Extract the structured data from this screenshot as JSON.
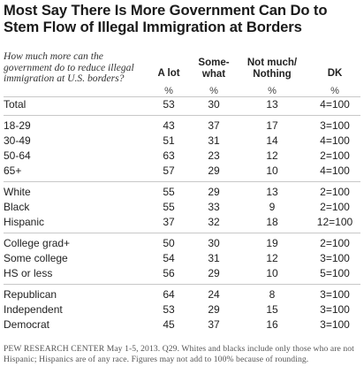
{
  "chart_data": {
    "type": "table",
    "title": "Most Say There Is More Government Can Do to Stem Flow of Illegal Immigration at Borders",
    "question": "How much more can the government do to reduce illegal immigration at U.S. borders?",
    "columns": [
      {
        "label": "A lot",
        "unit": "%"
      },
      {
        "label": "Some-what",
        "unit": "%"
      },
      {
        "label": "Not much/ Nothing",
        "unit": "%"
      },
      {
        "label": "DK",
        "unit": "%"
      }
    ],
    "groups": [
      {
        "rows": [
          {
            "label": "Total",
            "values": [
              "53",
              "30",
              "13",
              "4=100"
            ]
          }
        ]
      },
      {
        "rows": [
          {
            "label": "18-29",
            "values": [
              "43",
              "37",
              "17",
              "3=100"
            ]
          },
          {
            "label": "30-49",
            "values": [
              "51",
              "31",
              "14",
              "4=100"
            ]
          },
          {
            "label": "50-64",
            "values": [
              "63",
              "23",
              "12",
              "2=100"
            ]
          },
          {
            "label": "65+",
            "values": [
              "57",
              "29",
              "10",
              "4=100"
            ]
          }
        ]
      },
      {
        "rows": [
          {
            "label": "White",
            "values": [
              "55",
              "29",
              "13",
              "2=100"
            ]
          },
          {
            "label": "Black",
            "values": [
              "55",
              "33",
              "9",
              "2=100"
            ]
          },
          {
            "label": "Hispanic",
            "values": [
              "37",
              "32",
              "18",
              "12=100"
            ]
          }
        ]
      },
      {
        "rows": [
          {
            "label": "College grad+",
            "values": [
              "50",
              "30",
              "19",
              "2=100"
            ]
          },
          {
            "label": "Some college",
            "values": [
              "54",
              "31",
              "12",
              "3=100"
            ]
          },
          {
            "label": "HS or less",
            "values": [
              "56",
              "29",
              "10",
              "5=100"
            ]
          }
        ]
      },
      {
        "rows": [
          {
            "label": "Republican",
            "values": [
              "64",
              "24",
              "8",
              "3=100"
            ]
          },
          {
            "label": "Independent",
            "values": [
              "53",
              "29",
              "15",
              "3=100"
            ]
          },
          {
            "label": "Democrat",
            "values": [
              "45",
              "37",
              "16",
              "3=100"
            ]
          }
        ]
      }
    ],
    "footnote": "PEW RESEARCH CENTER May 1-5, 2013. Q29. Whites and blacks include only those who are not Hispanic; Hispanics are of any race. Figures may not add to 100% because of rounding."
  }
}
